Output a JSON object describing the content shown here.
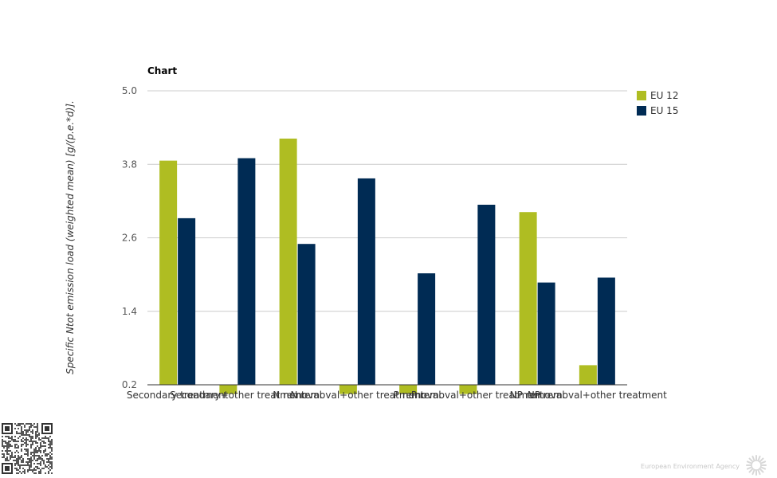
{
  "chart_data": {
    "type": "bar",
    "title": "Chart",
    "ylabel": "Specific Ntot emission load (weighted mean) [g/(p.e.*d)].",
    "xlabel": "",
    "ylim": [
      0.2,
      5.0
    ],
    "yticks": [
      "0.2",
      "1.4",
      "2.6",
      "3.8",
      "5.0"
    ],
    "grid": true,
    "legend_position": "right-top",
    "categories": [
      "Secondary treatment",
      "Secondary+other treatment",
      "N removal",
      "N removal+other treatment",
      "P removal",
      "P removal+other treatment",
      "NP removal",
      "NP removal+other treatment"
    ],
    "series": [
      {
        "name": "EU 12",
        "color": "#afbd22",
        "values": [
          3.86,
          0.05,
          4.22,
          0.05,
          0.05,
          0.05,
          3.02,
          0.52
        ]
      },
      {
        "name": "EU 15",
        "color": "#002b54",
        "values": [
          2.92,
          3.9,
          2.5,
          3.57,
          2.02,
          3.14,
          1.87,
          1.95
        ]
      }
    ]
  },
  "footer": {
    "credit": "European Environment Agency",
    "qr_icon": "qr-code-icon",
    "logo_icon": "eea-sun-logo-icon"
  }
}
